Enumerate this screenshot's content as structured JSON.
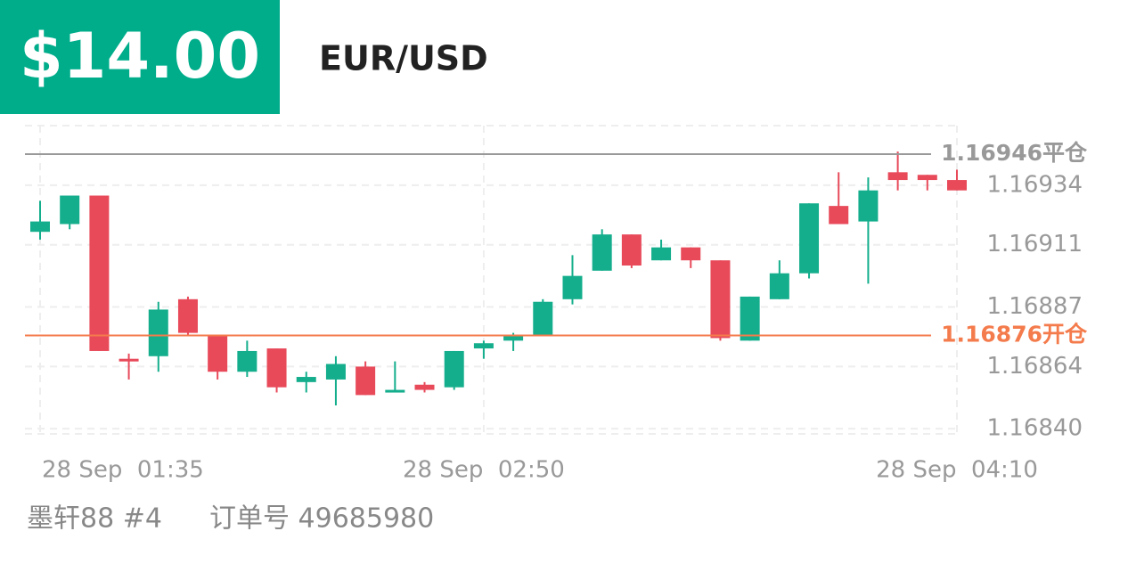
{
  "header": {
    "amount": "$14.00",
    "symbol": "EUR/USD"
  },
  "footer": {
    "account": "墨轩88 #4",
    "order": "订单号 49685980"
  },
  "chart_data": {
    "type": "candlestick",
    "categories": [
      "28 Sep  01:35",
      null,
      null,
      null,
      null,
      null,
      null,
      null,
      null,
      null,
      null,
      null,
      null,
      null,
      null,
      "28 Sep  02:50",
      null,
      null,
      null,
      null,
      null,
      null,
      null,
      null,
      null,
      null,
      null,
      null,
      null,
      null,
      null,
      "28 Sep  04:10"
    ],
    "open": [
      1.16916,
      1.16919,
      1.1693,
      1.16867,
      1.16868,
      1.1689,
      1.16876,
      1.16862,
      1.16871,
      1.16858,
      1.16859,
      1.16864,
      1.16854,
      1.16857,
      1.16856,
      1.16871,
      1.16874,
      1.16876,
      1.1689,
      1.16901,
      1.16915,
      1.16905,
      1.1691,
      1.16905,
      1.16874,
      1.1689,
      1.169,
      1.16926,
      1.1692,
      1.16939,
      1.16938,
      1.16936
    ],
    "high": [
      1.16928,
      1.1693,
      1.1693,
      1.16869,
      1.16889,
      1.16891,
      1.16876,
      1.16874,
      1.16871,
      1.16862,
      1.16868,
      1.16866,
      1.16866,
      1.16858,
      1.1687,
      1.16874,
      1.16877,
      1.1689,
      1.16907,
      1.16917,
      1.16915,
      1.16913,
      1.1691,
      1.16905,
      1.16891,
      1.16905,
      1.16927,
      1.16939,
      1.16937,
      1.16947,
      1.16938,
      1.1694
    ],
    "low": [
      1.16913,
      1.16917,
      1.1687,
      1.16859,
      1.16862,
      1.16876,
      1.16859,
      1.1686,
      1.16854,
      1.16854,
      1.16849,
      1.16853,
      1.16854,
      1.16854,
      1.16855,
      1.16867,
      1.1687,
      1.16876,
      1.16888,
      1.16901,
      1.16902,
      1.16905,
      1.16902,
      1.16874,
      1.16874,
      1.1689,
      1.16898,
      1.16919,
      1.16896,
      1.16932,
      1.16932,
      1.16932
    ],
    "close": [
      1.1692,
      1.1693,
      1.1687,
      1.16866,
      1.16886,
      1.16877,
      1.16862,
      1.1687,
      1.16856,
      1.1686,
      1.16865,
      1.16853,
      1.16855,
      1.16855,
      1.1687,
      1.16873,
      1.16876,
      1.16889,
      1.16899,
      1.16915,
      1.16903,
      1.1691,
      1.16905,
      1.16875,
      1.16891,
      1.169,
      1.16927,
      1.16919,
      1.16932,
      1.16936,
      1.16936,
      1.16932
    ],
    "up_color": "#14ae8c",
    "down_color": "#e84a5a",
    "ylim": [
      1.16838,
      1.16957
    ],
    "yticks": [
      1.16934,
      1.16911,
      1.16887,
      1.16864,
      {
        "value": 1.1684,
        "label": "1.16840"
      }
    ],
    "grid": true,
    "lines": [
      {
        "value": 1.16946,
        "label": "1.16946平仓",
        "color": "#999999"
      },
      {
        "value": 1.16876,
        "label": "1.16876开仓",
        "color": "#f47b4c"
      }
    ]
  }
}
